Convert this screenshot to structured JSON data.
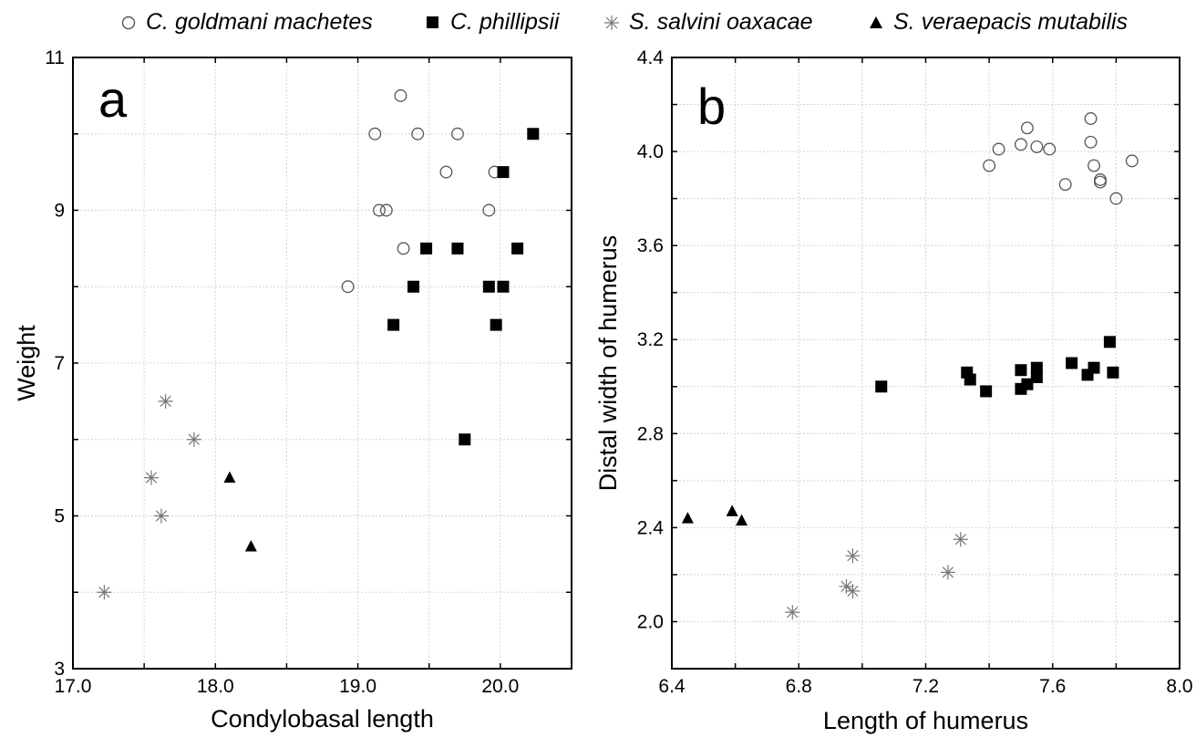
{
  "legend": [
    {
      "name": "C. goldmani machetes",
      "marker": "circle-open",
      "color": "#555555"
    },
    {
      "name": "C. phillipsii",
      "marker": "square-filled",
      "color": "#000000"
    },
    {
      "name": "S. salvini oaxacae",
      "marker": "asterisk",
      "color": "#777777"
    },
    {
      "name": "S. veraepacis mutabilis",
      "marker": "triangle-filled",
      "color": "#000000"
    }
  ],
  "chart_data": [
    {
      "type": "scatter",
      "panel_label": "a",
      "xlabel": "Condylobasal length",
      "ylabel": "Weight",
      "xlim": [
        17.0,
        20.5
      ],
      "ylim": [
        3,
        11
      ],
      "xticks": [
        "17.0",
        "18.0",
        "19.0",
        "20.0"
      ],
      "xtick_values": [
        17.0,
        18.0,
        19.0,
        20.0
      ],
      "yticks": [
        "3",
        "5",
        "7",
        "9",
        "11"
      ],
      "ytick_values": [
        3,
        5,
        7,
        9,
        11
      ],
      "grid": true,
      "series": [
        {
          "name": "C. goldmani machetes",
          "marker": "circle-open",
          "points": [
            [
              18.93,
              8.0
            ],
            [
              19.12,
              10.0
            ],
            [
              19.15,
              9.0
            ],
            [
              19.2,
              9.0
            ],
            [
              19.3,
              10.5
            ],
            [
              19.32,
              8.5
            ],
            [
              19.42,
              10.0
            ],
            [
              19.62,
              9.5
            ],
            [
              19.7,
              10.0
            ],
            [
              19.92,
              9.0
            ],
            [
              19.96,
              9.5
            ]
          ]
        },
        {
          "name": "C. phillipsii",
          "marker": "square-filled",
          "points": [
            [
              19.25,
              7.5
            ],
            [
              19.39,
              8.0
            ],
            [
              19.48,
              8.5
            ],
            [
              19.7,
              8.5
            ],
            [
              19.75,
              6.0
            ],
            [
              19.92,
              8.0
            ],
            [
              19.97,
              7.5
            ],
            [
              20.02,
              9.5
            ],
            [
              20.02,
              8.0
            ],
            [
              20.12,
              8.5
            ],
            [
              20.23,
              10.0
            ]
          ]
        },
        {
          "name": "S. salvini oaxacae",
          "marker": "asterisk",
          "points": [
            [
              17.22,
              4.0
            ],
            [
              17.55,
              5.5
            ],
            [
              17.62,
              5.0
            ],
            [
              17.65,
              6.5
            ],
            [
              17.85,
              6.0
            ]
          ]
        },
        {
          "name": "S. veraepacis mutabilis",
          "marker": "triangle-filled",
          "points": [
            [
              18.1,
              5.5
            ],
            [
              18.25,
              4.6
            ]
          ]
        }
      ]
    },
    {
      "type": "scatter",
      "panel_label": "b",
      "xlabel": "Length of humerus",
      "ylabel": "Distal width of humerus",
      "xlim": [
        6.4,
        8.0
      ],
      "ylim": [
        1.8,
        4.4
      ],
      "xticks": [
        "6.4",
        "6.8",
        "7.2",
        "7.6",
        "8.0"
      ],
      "xtick_values": [
        6.4,
        6.8,
        7.2,
        7.6,
        8.0
      ],
      "yticks": [
        "2.0",
        "2.4",
        "2.8",
        "3.2",
        "3.6",
        "4.0",
        "4.4"
      ],
      "ytick_values": [
        2.0,
        2.4,
        2.8,
        3.2,
        3.6,
        4.0,
        4.4
      ],
      "grid": true,
      "series": [
        {
          "name": "C. goldmani machetes",
          "marker": "circle-open",
          "points": [
            [
              7.4,
              3.94
            ],
            [
              7.43,
              4.01
            ],
            [
              7.5,
              4.03
            ],
            [
              7.52,
              4.1
            ],
            [
              7.55,
              4.02
            ],
            [
              7.59,
              4.01
            ],
            [
              7.64,
              3.86
            ],
            [
              7.72,
              4.14
            ],
            [
              7.72,
              4.04
            ],
            [
              7.73,
              3.94
            ],
            [
              7.75,
              3.88
            ],
            [
              7.75,
              3.87
            ],
            [
              7.8,
              3.8
            ],
            [
              7.85,
              3.96
            ]
          ]
        },
        {
          "name": "C. phillipsii",
          "marker": "square-filled",
          "points": [
            [
              7.06,
              3.0
            ],
            [
              7.33,
              3.06
            ],
            [
              7.34,
              3.03
            ],
            [
              7.39,
              2.98
            ],
            [
              7.5,
              3.07
            ],
            [
              7.5,
              2.99
            ],
            [
              7.52,
              3.01
            ],
            [
              7.55,
              3.08
            ],
            [
              7.55,
              3.04
            ],
            [
              7.66,
              3.1
            ],
            [
              7.71,
              3.05
            ],
            [
              7.73,
              3.08
            ],
            [
              7.78,
              3.19
            ],
            [
              7.79,
              3.06
            ]
          ]
        },
        {
          "name": "S. salvini oaxacae",
          "marker": "asterisk",
          "points": [
            [
              6.78,
              2.04
            ],
            [
              6.95,
              2.15
            ],
            [
              6.97,
              2.13
            ],
            [
              6.97,
              2.28
            ],
            [
              7.27,
              2.21
            ],
            [
              7.31,
              2.35
            ]
          ]
        },
        {
          "name": "S. veraepacis mutabilis",
          "marker": "triangle-filled",
          "points": [
            [
              6.45,
              2.44
            ],
            [
              6.59,
              2.47
            ],
            [
              6.62,
              2.43
            ]
          ]
        }
      ]
    }
  ]
}
